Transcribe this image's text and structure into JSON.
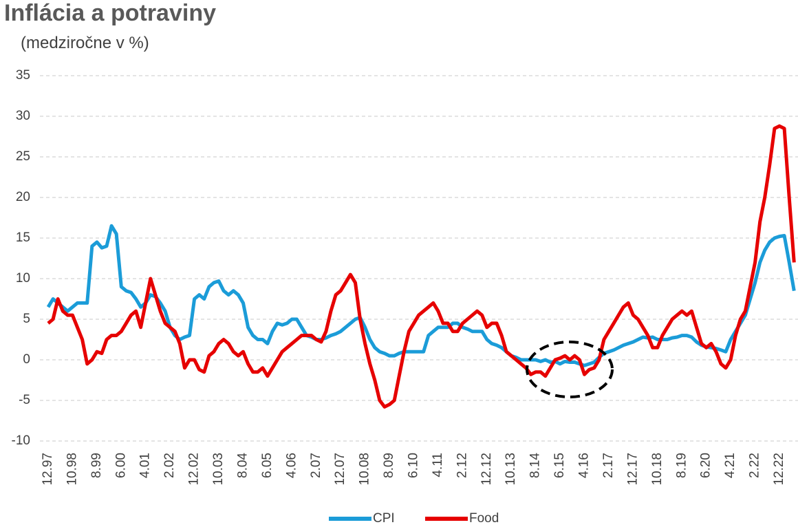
{
  "chart_data": {
    "type": "line",
    "title": "Inflácia a potraviny",
    "subtitle": "(medziročne v %)",
    "categories": [
      "12.97",
      null,
      null,
      null,
      null,
      "10.98",
      null,
      null,
      null,
      null,
      "8.99",
      null,
      null,
      null,
      null,
      "6.00",
      null,
      null,
      null,
      null,
      "4.01",
      null,
      null,
      null,
      null,
      "2.02",
      null,
      null,
      null,
      null,
      "12.02",
      null,
      null,
      null,
      null,
      "10.03",
      null,
      null,
      null,
      null,
      "8.04",
      null,
      null,
      null,
      null,
      "6.05",
      null,
      null,
      null,
      null,
      "4.06",
      null,
      null,
      null,
      null,
      "2.07",
      null,
      null,
      null,
      null,
      "12.07",
      null,
      null,
      null,
      null,
      "10.08",
      null,
      null,
      null,
      null,
      "8.09",
      null,
      null,
      null,
      null,
      "6.10",
      null,
      null,
      null,
      null,
      "4.11",
      null,
      null,
      null,
      null,
      "2.12",
      null,
      null,
      null,
      null,
      "12.12",
      null,
      null,
      null,
      null,
      "10.13",
      null,
      null,
      null,
      null,
      "8.14",
      null,
      null,
      null,
      null,
      "6.15",
      null,
      null,
      null,
      null,
      "4.16",
      null,
      null,
      null,
      null,
      "2.17",
      null,
      null,
      null,
      null,
      "12.17",
      null,
      null,
      null,
      null,
      "10.18",
      null,
      null,
      null,
      null,
      "8.19",
      null,
      null,
      null,
      null,
      "6.20",
      null,
      null,
      null,
      null,
      "4.21",
      null,
      null,
      null,
      null,
      "2.22",
      null,
      null,
      null,
      null,
      "12.22",
      null,
      null,
      null
    ],
    "series": [
      {
        "name": "CPI",
        "color": "#1b9cd8",
        "values": [
          6.5,
          7.5,
          7,
          6.5,
          6,
          6.5,
          7,
          7,
          7,
          14,
          14.5,
          13.8,
          14,
          16.5,
          15.5,
          9,
          8.5,
          8.3,
          7.5,
          6.5,
          7,
          8,
          7.8,
          7,
          6,
          4,
          3,
          2.5,
          2.8,
          3,
          7.5,
          8,
          7.5,
          9,
          9.5,
          9.7,
          8.5,
          8,
          8.5,
          8,
          7,
          4,
          3,
          2.5,
          2.5,
          2,
          3.5,
          4.5,
          4.3,
          4.5,
          5,
          5,
          4,
          3,
          2.8,
          2.5,
          2.5,
          2.7,
          3,
          3.2,
          3.5,
          4,
          4.5,
          5,
          5.2,
          4,
          2.5,
          1.5,
          1,
          0.8,
          0.5,
          0.5,
          0.8,
          1,
          1,
          1,
          1,
          1,
          3,
          3.5,
          4,
          4,
          4,
          4.5,
          4.5,
          4,
          3.8,
          3.5,
          3.5,
          3.5,
          2.5,
          2,
          1.8,
          1.5,
          1,
          0.5,
          0.3,
          0,
          0,
          0,
          0,
          -0.2,
          0,
          -0.3,
          -0.2,
          -0.5,
          -0.2,
          -0.3,
          -0.3,
          -0.5,
          -0.7,
          -0.5,
          -0.3,
          0.3,
          0.8,
          1,
          1.2,
          1.5,
          1.8,
          2,
          2.2,
          2.5,
          2.8,
          2.7,
          2.8,
          2.5,
          2.5,
          2.5,
          2.7,
          2.8,
          3,
          3,
          2.8,
          2.2,
          1.8,
          1.6,
          1.5,
          1.4,
          1.2,
          1,
          2.5,
          3.5,
          4.5,
          5.5,
          7.5,
          9.5,
          12,
          13.5,
          14.5,
          15,
          15.2,
          15.3,
          12,
          8.5
        ]
      },
      {
        "name": "Food",
        "color": "#e60000",
        "values": [
          4.5,
          5,
          7.5,
          6,
          5.5,
          5.5,
          4,
          2.5,
          -0.5,
          0,
          1,
          0.8,
          2.5,
          3,
          3,
          3.5,
          4.5,
          5.5,
          6,
          4,
          7,
          10,
          8,
          6,
          4.5,
          4,
          3.5,
          2,
          -1,
          0,
          0,
          -1.2,
          -1.5,
          0.5,
          1,
          2,
          2.5,
          2,
          1,
          0.5,
          1,
          -0.5,
          -1.5,
          -1.5,
          -1,
          -2,
          -1,
          0,
          1,
          1.5,
          2,
          2.5,
          3,
          3,
          3,
          2.5,
          2.2,
          3.5,
          6,
          8,
          8.5,
          9.5,
          10.5,
          9.5,
          5,
          2,
          -0.5,
          -2.5,
          -5,
          -5.8,
          -5.5,
          -5,
          -2,
          1,
          3.5,
          4.5,
          5.5,
          6,
          6.5,
          7,
          6,
          4.5,
          4.5,
          3.5,
          3.5,
          4.5,
          5,
          5.5,
          6,
          5.5,
          4,
          4.5,
          4.5,
          3,
          1,
          0.5,
          0,
          -0.5,
          -1,
          -1.8,
          -1.5,
          -1.5,
          -2,
          -1,
          0,
          0.2,
          0.5,
          0,
          0.5,
          0,
          -1.8,
          -1.2,
          -1,
          0,
          2.5,
          3.5,
          4.5,
          5.5,
          6.5,
          7,
          5.5,
          5,
          4,
          3,
          1.5,
          1.5,
          3,
          4,
          5,
          5.5,
          6,
          5.5,
          6,
          4,
          2,
          1.5,
          2,
          1,
          -0.5,
          -1,
          0,
          3,
          5,
          6,
          9,
          12,
          17,
          20,
          24,
          28.5,
          28.8,
          28.5,
          20,
          12
        ]
      }
    ],
    "ylim": [
      -10,
      35
    ],
    "yticks": [
      -10,
      -5,
      0,
      5,
      10,
      15,
      20,
      25,
      30,
      35
    ],
    "grid": true,
    "legend": "bottom"
  }
}
